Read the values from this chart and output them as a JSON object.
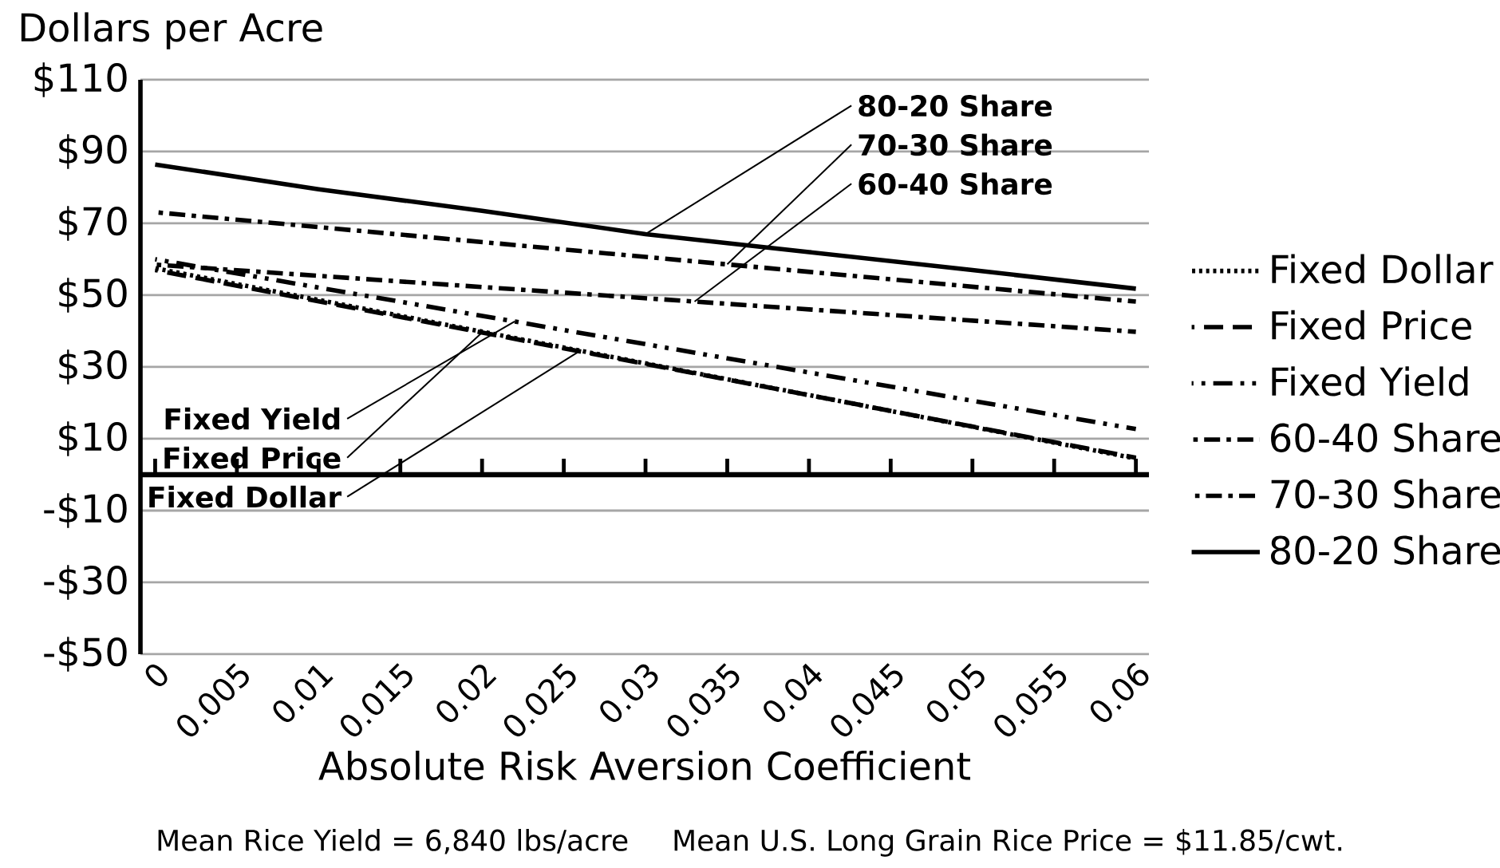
{
  "chart_data": {
    "type": "line",
    "ylabel": "Dollars per Acre",
    "xlabel": "Absolute Risk Aversion Coefficient",
    "xlim": [
      -0.0009,
      0.0608
    ],
    "ylim": [
      -50,
      110
    ],
    "xticks": [
      0,
      0.005,
      0.01,
      0.015,
      0.02,
      0.025,
      0.03,
      0.035,
      0.04,
      0.045,
      0.05,
      0.055,
      0.06
    ],
    "yticks": [
      {
        "value": -50,
        "label": "-$50"
      },
      {
        "value": -30,
        "label": "-$30"
      },
      {
        "value": -10,
        "label": "-$10"
      },
      {
        "value": 10,
        "label": "$10"
      },
      {
        "value": 30,
        "label": "$30"
      },
      {
        "value": 50,
        "label": "$50"
      },
      {
        "value": 70,
        "label": "$70"
      },
      {
        "value": 90,
        "label": "$90"
      },
      {
        "value": 110,
        "label": "$110"
      }
    ],
    "grid": "y",
    "legend": "right",
    "marker": "none",
    "ref_lines": [
      {
        "axis": "y",
        "value": 0,
        "color": "#000000"
      }
    ],
    "series": [
      {
        "name": "Fixed Dollar",
        "color": "#000000",
        "line_style": "dotted",
        "x": [
          0,
          0.06
        ],
        "values": [
          57.5,
          4.5
        ]
      },
      {
        "name": "Fixed Price",
        "color": "#000000",
        "line_style": "dashed",
        "x": [
          0,
          0.06
        ],
        "values": [
          57,
          4.7
        ]
      },
      {
        "name": "Fixed Yield",
        "color": "#000000",
        "line_style": "dashdotdot",
        "x": [
          0,
          0.06
        ],
        "values": [
          60,
          12.7
        ]
      },
      {
        "name": "60-40 Share",
        "color": "#000000",
        "line_style": "dashdot",
        "x": [
          0,
          0.06
        ],
        "values": [
          58.5,
          39.8
        ]
      },
      {
        "name": "70-30 Share",
        "color": "#000000",
        "line_style": "dashdot",
        "x": [
          0,
          0.06
        ],
        "values": [
          73.1,
          48.2
        ]
      },
      {
        "name": "80-20 Share",
        "color": "#000000",
        "line_style": "solid",
        "x": [
          0,
          0.01,
          0.02,
          0.03,
          0.04,
          0.05,
          0.06
        ],
        "values": [
          86.4,
          79.5,
          73.5,
          67,
          62,
          57,
          51.8
        ]
      }
    ],
    "annotations": [
      {
        "text": "80-20 Share",
        "x": 0.03,
        "y": 67
      },
      {
        "text": "70-30 Share",
        "x": 0.035,
        "y": 58.6
      },
      {
        "text": "60-40 Share",
        "x": 0.033,
        "y": 48.2
      },
      {
        "text": "Fixed Yield",
        "x": 0.022,
        "y": 42.7
      },
      {
        "text": "Fixed Price",
        "x": 0.02,
        "y": 39.6
      },
      {
        "text": "Fixed Dollar",
        "x": 0.026,
        "y": 34.5
      },
      "Mean Rice Yield = 6,840 lbs/acre",
      "Mean U.S. Long Grain Rice Price = $11.85/cwt."
    ]
  }
}
